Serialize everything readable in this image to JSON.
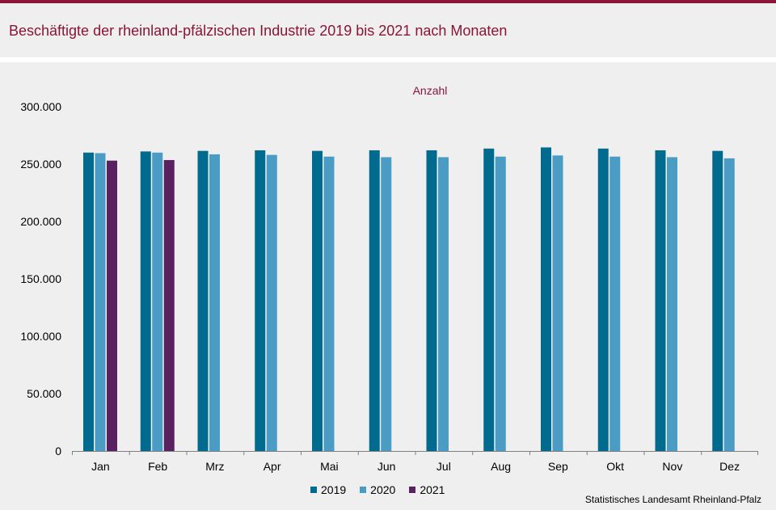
{
  "header": {
    "title": "Beschäftigte der rheinland-pfälzischen Industrie 2019 bis 2021 nach Monaten"
  },
  "source": "Statistisches Landesamt  Rheinland-Pfalz",
  "colors": {
    "accent": "#8a1538",
    "background": "#eeefee",
    "series_2019": "#006b8f",
    "series_2020": "#4a9cc4",
    "series_2021": "#5a2160"
  },
  "chart_data": {
    "type": "bar",
    "title": "Beschäftigte der rheinland-pfälzischen Industrie 2019 bis 2021 nach Monaten",
    "unit_label": "Anzahl",
    "xlabel": "",
    "ylabel": "",
    "ylim": [
      0,
      300000
    ],
    "yticks": [
      0,
      50000,
      100000,
      150000,
      200000,
      250000,
      300000
    ],
    "ytick_labels": [
      "0",
      "50.000",
      "100.000",
      "150.000",
      "200.000",
      "250.000",
      "300.000"
    ],
    "grid": false,
    "legend_position": "bottom",
    "categories": [
      "Jan",
      "Feb",
      "Mrz",
      "Apr",
      "Mai",
      "Jun",
      "Jul",
      "Aug",
      "Sep",
      "Okt",
      "Nov",
      "Dez"
    ],
    "series": [
      {
        "name": "2019",
        "color": "#006b8f",
        "values": [
          260000,
          261000,
          261500,
          262000,
          261500,
          262000,
          262000,
          263500,
          264500,
          263500,
          262000,
          261500
        ]
      },
      {
        "name": "2020",
        "color": "#4a9cc4",
        "values": [
          259500,
          260000,
          258500,
          258000,
          256500,
          256000,
          256000,
          256500,
          257500,
          256500,
          256000,
          255000
        ]
      },
      {
        "name": "2021",
        "color": "#5a2160",
        "values": [
          253000,
          253500,
          null,
          null,
          null,
          null,
          null,
          null,
          null,
          null,
          null,
          null
        ]
      }
    ]
  }
}
